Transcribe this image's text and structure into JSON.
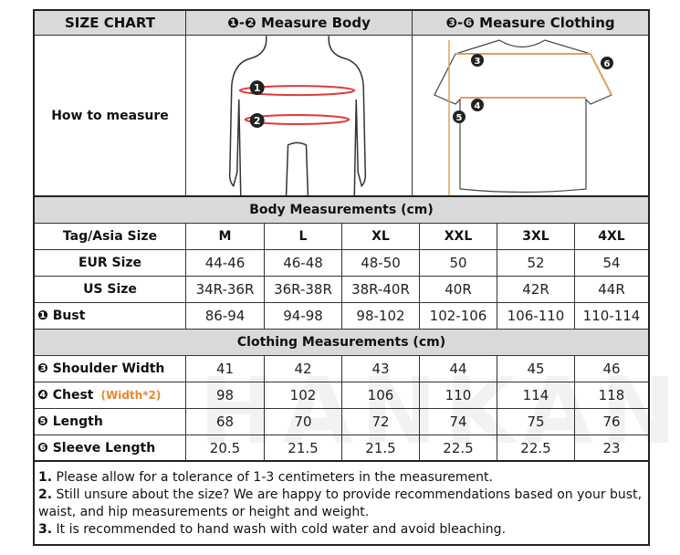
{
  "header": {
    "title": "SIZE CHART",
    "body": "❶-❷ Measure Body",
    "clothing": "❸-❻ Measure Clothing"
  },
  "how_to": "How to measure",
  "body_section": "Body Measurements (cm)",
  "clothing_section": "Clothing Measurements  (cm)",
  "size_label": "Tag/Asia Size",
  "sizes": [
    "M",
    "L",
    "XL",
    "XXL",
    "3XL",
    "4XL"
  ],
  "body_rows": [
    {
      "label": "EUR Size",
      "values": [
        "44-46",
        "46-48",
        "48-50",
        "50",
        "52",
        "54"
      ]
    },
    {
      "label": "US Size",
      "values": [
        "34R-36R",
        "36R-38R",
        "38R-40R",
        "40R",
        "42R",
        "44R"
      ]
    },
    {
      "label": "❶ Bust",
      "values": [
        "86-94",
        "94-98",
        "98-102",
        "102-106",
        "106-110",
        "110-114"
      ]
    }
  ],
  "clothing_rows": [
    {
      "label": "❸ Shoulder Width",
      "values": [
        "41",
        "42",
        "43",
        "44",
        "45",
        "46"
      ]
    },
    {
      "label": "❹ Chest",
      "note": "(Width*2)",
      "values": [
        "98",
        "102",
        "106",
        "110",
        "114",
        "118"
      ]
    },
    {
      "label": "❺ Length",
      "values": [
        "68",
        "70",
        "72",
        "74",
        "75",
        "76"
      ]
    },
    {
      "label": "❻ Sleeve Length",
      "values": [
        "20.5",
        "21.5",
        "21.5",
        "22.5",
        "22.5",
        "23"
      ]
    }
  ],
  "diagram_markers": {
    "body": [
      "1",
      "2"
    ],
    "clothing": [
      "3",
      "4",
      "5",
      "6"
    ]
  },
  "notes": [
    {
      "num": "1.",
      "text": " Please allow for a tolerance of 1-3 centimeters in the measurement."
    },
    {
      "num": "2.",
      "text": " Still unsure about the size? We are happy to provide recommendations based on your bust, waist, and hip measurements or height and weight."
    },
    {
      "num": "3.",
      "text": " It is recommended to hand wash with cold water and avoid bleaching."
    }
  ],
  "watermark": "HANKANON",
  "colors": {
    "header_bg": "#d9d9d9",
    "accent": "#e8872e",
    "measure_line": "#e03a3a"
  }
}
